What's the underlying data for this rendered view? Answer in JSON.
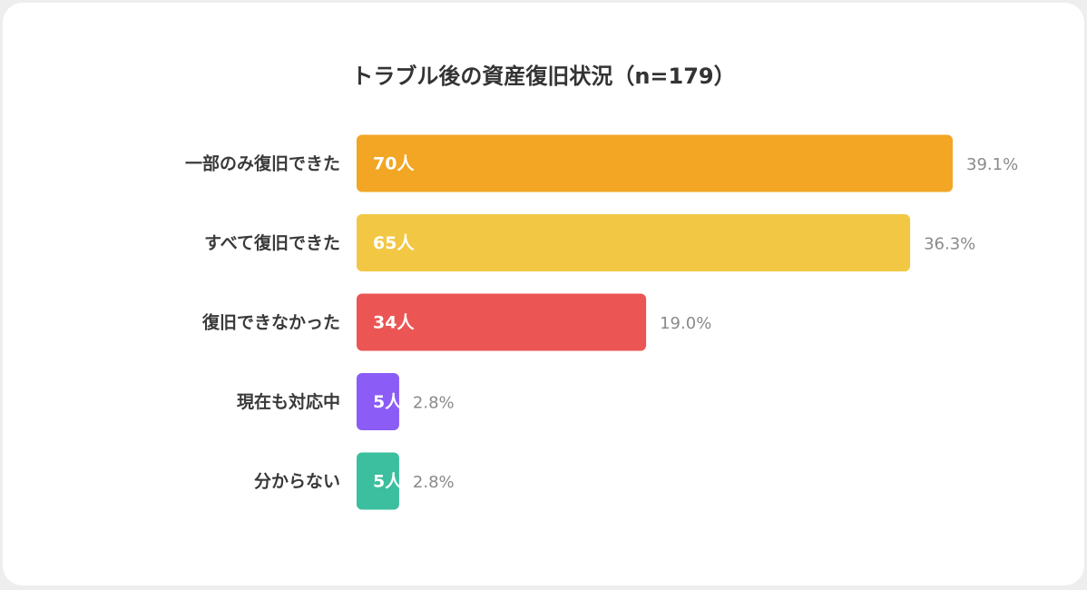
{
  "chart_data": {
    "type": "bar",
    "title": "トラブル後の資産復旧状況（n=179）",
    "categories": [
      "一部のみ復旧できた",
      "すべて復旧できた",
      "復旧できなかった",
      "現在も対応中",
      "分からない"
    ],
    "values": [
      70,
      65,
      34,
      5,
      5
    ],
    "value_labels": [
      "70人",
      "65人",
      "34人",
      "5人",
      "5人"
    ],
    "colors": [
      "#f2a623",
      "#f2c744",
      "#eb5553",
      "#8b5cf6",
      "#3bbf9e"
    ],
    "shares": {
      "values": [
        39.1,
        36.3,
        19.0,
        2.8,
        2.8
      ],
      "value_labels": [
        "39.1%",
        "36.3%",
        "19.0%",
        "2.8%",
        "2.8%"
      ]
    }
  }
}
